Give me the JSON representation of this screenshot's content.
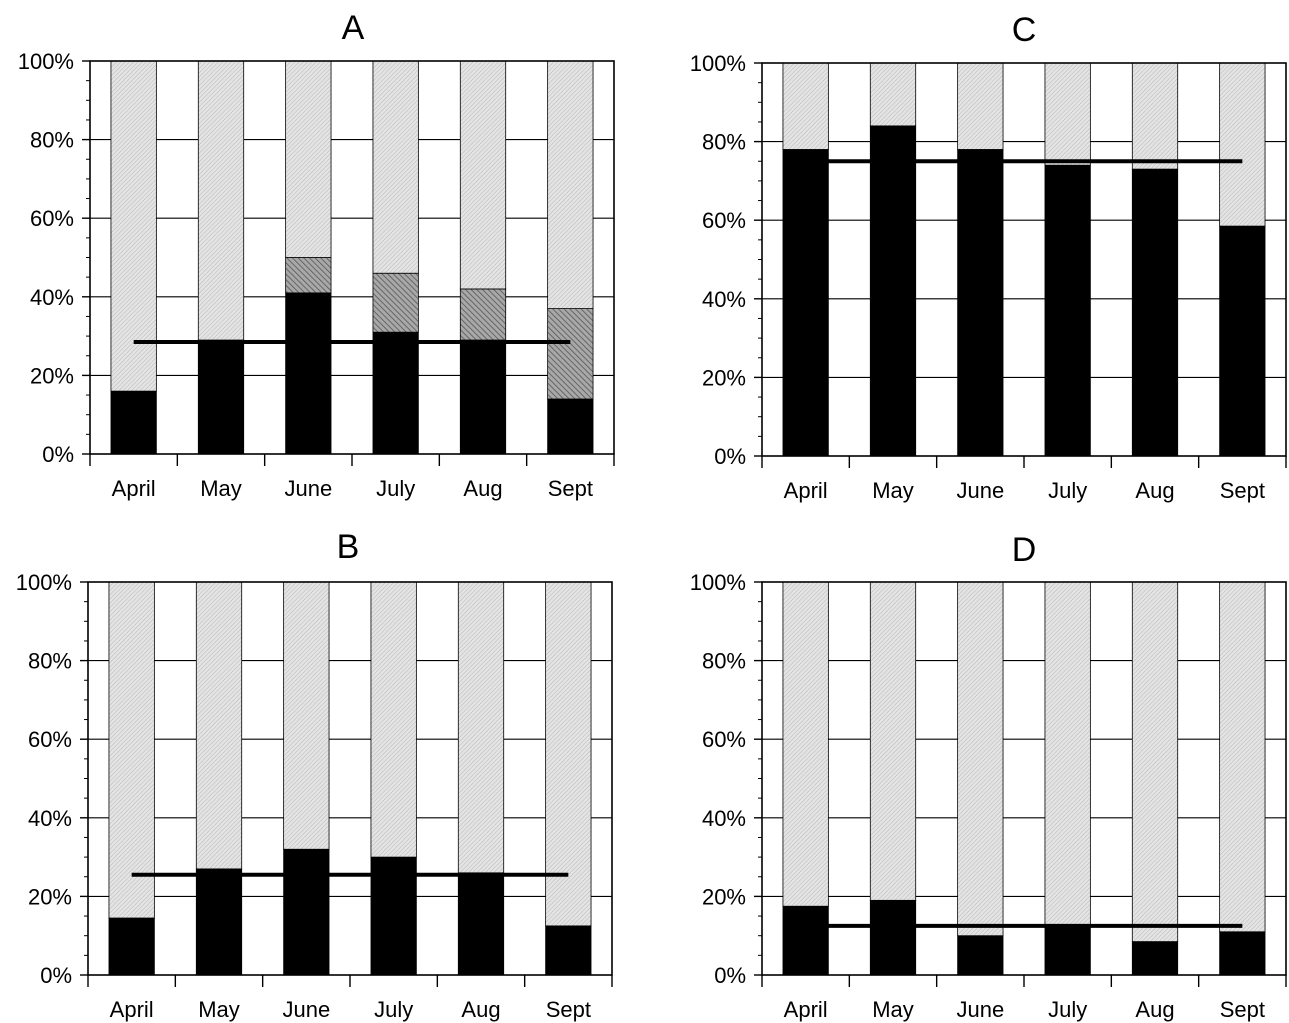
{
  "chart_data": [
    {
      "type": "bar",
      "title": "A",
      "categories": [
        "April",
        "May",
        "June",
        "July",
        "Aug",
        "Sept"
      ],
      "series": [
        {
          "values": [
            16,
            29,
            41,
            31,
            29,
            14
          ]
        },
        {
          "values": [
            0,
            0,
            9,
            15,
            13,
            23
          ]
        },
        {
          "values": [
            84,
            71,
            50,
            54,
            58,
            63
          ]
        }
      ],
      "reference_line": 28.5,
      "ylim": [
        0,
        100
      ],
      "yticks": [
        "0%",
        "20%",
        "40%",
        "60%",
        "80%",
        "100%"
      ],
      "grid": true
    },
    {
      "type": "bar",
      "title": "B",
      "categories": [
        "April",
        "May",
        "June",
        "July",
        "Aug",
        "Sept"
      ],
      "series": [
        {
          "values": [
            14.5,
            27,
            32,
            30,
            26,
            12.5
          ]
        },
        {
          "values": [
            0,
            0,
            0,
            0,
            0,
            0
          ]
        },
        {
          "values": [
            85.5,
            73,
            68,
            70,
            74,
            87.5
          ]
        }
      ],
      "reference_line": 25.5,
      "ylim": [
        0,
        100
      ],
      "yticks": [
        "0%",
        "20%",
        "40%",
        "60%",
        "80%",
        "100%"
      ],
      "grid": true
    },
    {
      "type": "bar",
      "title": "C",
      "categories": [
        "April",
        "May",
        "June",
        "July",
        "Aug",
        "Sept"
      ],
      "series": [
        {
          "values": [
            78,
            84,
            78,
            74,
            73,
            58.5
          ]
        },
        {
          "values": [
            0,
            0,
            0,
            0,
            0,
            0
          ]
        },
        {
          "values": [
            22,
            16,
            22,
            26,
            27,
            41.5
          ]
        }
      ],
      "reference_line": 75,
      "ylim": [
        0,
        100
      ],
      "yticks": [
        "0%",
        "20%",
        "40%",
        "60%",
        "80%",
        "100%"
      ],
      "grid": true
    },
    {
      "type": "bar",
      "title": "D",
      "categories": [
        "April",
        "May",
        "June",
        "July",
        "Aug",
        "Sept"
      ],
      "series": [
        {
          "values": [
            17.5,
            19,
            10,
            12,
            8.5,
            11
          ]
        },
        {
          "values": [
            0,
            0,
            0,
            0,
            0,
            0
          ]
        },
        {
          "values": [
            82.5,
            81,
            90,
            88,
            91.5,
            89
          ]
        }
      ],
      "reference_line": 12.5,
      "ylim": [
        0,
        100
      ],
      "yticks": [
        "0%",
        "20%",
        "40%",
        "60%",
        "80%",
        "100%"
      ],
      "grid": true
    }
  ]
}
